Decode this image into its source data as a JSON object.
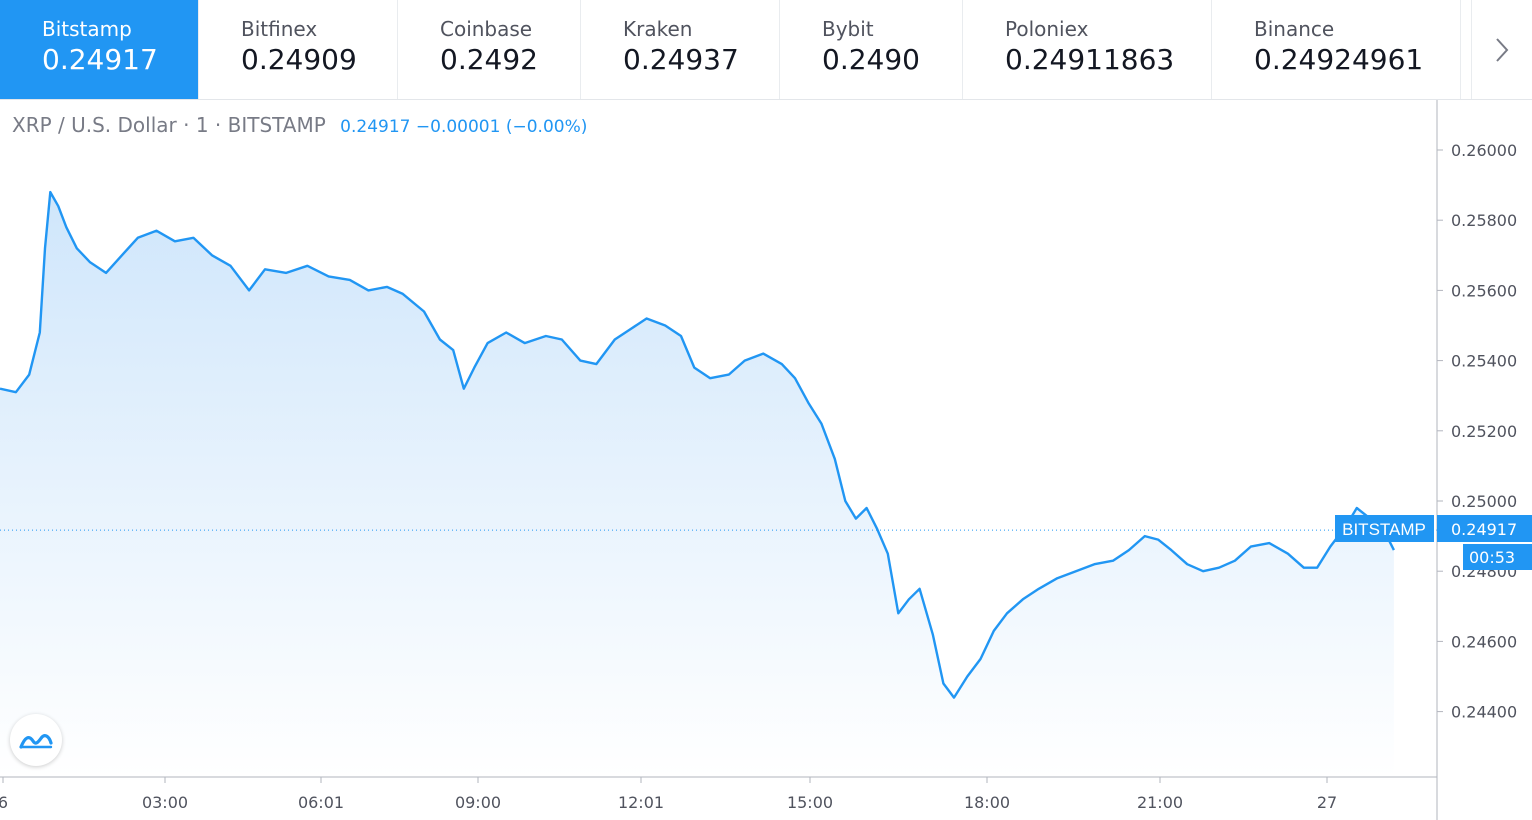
{
  "tabs": [
    {
      "name": "Bitstamp",
      "price": "0.24917",
      "active": true
    },
    {
      "name": "Bitfinex",
      "price": "0.24909"
    },
    {
      "name": "Coinbase",
      "price": "0.2492"
    },
    {
      "name": "Kraken",
      "price": "0.24937"
    },
    {
      "name": "Bybit",
      "price": "0.2490"
    },
    {
      "name": "Poloniex",
      "price": "0.24911863"
    },
    {
      "name": "Binance",
      "price": "0.24924961"
    }
  ],
  "legend": {
    "symbol": "XRP / U.S. Dollar · 1 · BITSTAMP",
    "last": "0.24917",
    "change": "−0.00001",
    "change_pct": "(−0.00%)"
  },
  "price_tag": {
    "label": "BITSTAMP",
    "price": "0.24917",
    "countdown": "00:53"
  },
  "colors": {
    "accent": "#2196f3",
    "line": "#2196f3",
    "area_top": "#cfe6fb",
    "area_bottom": "#ffffff"
  },
  "icons": {
    "more": "chevron-right-icon",
    "logo": "tradingview-logo-icon"
  },
  "chart_data": {
    "type": "area",
    "y_ticks": [
      "0.26000",
      "0.25800",
      "0.25600",
      "0.25400",
      "0.25200",
      "0.25000",
      "0.24800",
      "0.24600",
      "0.24400"
    ],
    "x_ticks": [
      "6",
      "03:00",
      "06:01",
      "09:00",
      "12:01",
      "15:00",
      "18:00",
      "21:00",
      "27"
    ],
    "ylim": [
      0.2424,
      0.2613
    ],
    "x_unit": "hours",
    "xlim": [
      0,
      30
    ],
    "grid": false,
    "last_value": 0.24917,
    "points": [
      [
        0.0,
        0.2532
      ],
      [
        0.3,
        0.2531
      ],
      [
        0.55,
        0.2536
      ],
      [
        0.75,
        0.2548
      ],
      [
        0.85,
        0.2572
      ],
      [
        0.95,
        0.2588
      ],
      [
        1.1,
        0.2584
      ],
      [
        1.25,
        0.2578
      ],
      [
        1.45,
        0.2572
      ],
      [
        1.7,
        0.2568
      ],
      [
        2.0,
        0.2565
      ],
      [
        2.3,
        0.257
      ],
      [
        2.6,
        0.2575
      ],
      [
        2.95,
        0.2577
      ],
      [
        3.3,
        0.2574
      ],
      [
        3.65,
        0.2575
      ],
      [
        4.0,
        0.257
      ],
      [
        4.35,
        0.2567
      ],
      [
        4.7,
        0.256
      ],
      [
        5.0,
        0.2566
      ],
      [
        5.4,
        0.2565
      ],
      [
        5.8,
        0.2567
      ],
      [
        6.2,
        0.2564
      ],
      [
        6.6,
        0.2563
      ],
      [
        6.95,
        0.256
      ],
      [
        7.3,
        0.2561
      ],
      [
        7.6,
        0.2559
      ],
      [
        8.0,
        0.2554
      ],
      [
        8.3,
        0.2546
      ],
      [
        8.55,
        0.2543
      ],
      [
        8.75,
        0.2532
      ],
      [
        8.95,
        0.2538
      ],
      [
        9.2,
        0.2545
      ],
      [
        9.55,
        0.2548
      ],
      [
        9.9,
        0.2545
      ],
      [
        10.3,
        0.2547
      ],
      [
        10.6,
        0.2546
      ],
      [
        10.95,
        0.254
      ],
      [
        11.25,
        0.2539
      ],
      [
        11.6,
        0.2546
      ],
      [
        11.9,
        0.2549
      ],
      [
        12.2,
        0.2552
      ],
      [
        12.55,
        0.255
      ],
      [
        12.85,
        0.2547
      ],
      [
        13.1,
        0.2538
      ],
      [
        13.4,
        0.2535
      ],
      [
        13.75,
        0.2536
      ],
      [
        14.05,
        0.254
      ],
      [
        14.4,
        0.2542
      ],
      [
        14.75,
        0.2539
      ],
      [
        15.0,
        0.2535
      ],
      [
        15.25,
        0.2528
      ],
      [
        15.5,
        0.2522
      ],
      [
        15.75,
        0.2512
      ],
      [
        15.95,
        0.25
      ],
      [
        16.15,
        0.2495
      ],
      [
        16.35,
        0.2498
      ],
      [
        16.55,
        0.2492
      ],
      [
        16.75,
        0.2485
      ],
      [
        16.95,
        0.2468
      ],
      [
        17.15,
        0.2472
      ],
      [
        17.35,
        0.2475
      ],
      [
        17.6,
        0.2462
      ],
      [
        17.8,
        0.2448
      ],
      [
        18.0,
        0.2444
      ],
      [
        18.25,
        0.245
      ],
      [
        18.5,
        0.2455
      ],
      [
        18.75,
        0.2463
      ],
      [
        19.0,
        0.2468
      ],
      [
        19.3,
        0.2472
      ],
      [
        19.6,
        0.2475
      ],
      [
        19.95,
        0.2478
      ],
      [
        20.3,
        0.248
      ],
      [
        20.65,
        0.2482
      ],
      [
        21.0,
        0.2483
      ],
      [
        21.3,
        0.2486
      ],
      [
        21.6,
        0.249
      ],
      [
        21.85,
        0.2489
      ],
      [
        22.1,
        0.2486
      ],
      [
        22.4,
        0.2482
      ],
      [
        22.7,
        0.248
      ],
      [
        23.0,
        0.2481
      ],
      [
        23.3,
        0.2483
      ],
      [
        23.6,
        0.2487
      ],
      [
        23.95,
        0.2488
      ],
      [
        24.3,
        0.2485
      ],
      [
        24.6,
        0.2481
      ],
      [
        24.85,
        0.2481
      ],
      [
        25.1,
        0.2487
      ],
      [
        25.4,
        0.2493
      ],
      [
        25.6,
        0.2498
      ],
      [
        25.85,
        0.2495
      ],
      [
        26.1,
        0.2492
      ],
      [
        26.3,
        0.2486
      ]
    ]
  }
}
